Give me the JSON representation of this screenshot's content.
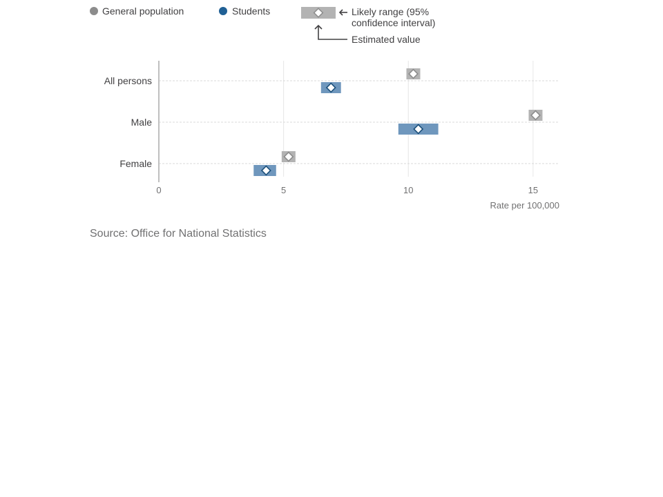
{
  "chart_data": {
    "type": "scatter",
    "categories": [
      "All persons",
      "Male",
      "Female"
    ],
    "series": [
      {
        "name": "General population",
        "color": "#999999",
        "values": [
          10.2,
          15.1,
          5.2
        ],
        "lower": [
          10.1,
          14.9,
          5.0
        ],
        "upper": [
          10.3,
          15.4,
          5.4
        ]
      },
      {
        "name": "Students",
        "color": "#206095",
        "values": [
          6.9,
          10.4,
          4.3
        ],
        "lower": [
          6.5,
          9.6,
          3.8
        ],
        "upper": [
          7.3,
          11.2,
          4.7
        ]
      }
    ],
    "xlim": [
      0,
      16
    ],
    "xticks": [
      0,
      5,
      10,
      15
    ],
    "xlabel": "Rate per 100,000",
    "grid": true,
    "legend_position": "top"
  },
  "legend": {
    "general_label": "General population",
    "students_label": "Students",
    "range_label_line1": "Likely range (95%",
    "range_label_line2": "confidence interval)",
    "estimate_label": "Estimated value"
  },
  "source": "Source: Office for National Statistics",
  "colors": {
    "general": "#999999",
    "general_bar": "#b3b3b3",
    "students": "#206095",
    "students_bar": "#6f97bd",
    "gridline": "#d9d9d9",
    "axis": "#bfbfbf"
  }
}
